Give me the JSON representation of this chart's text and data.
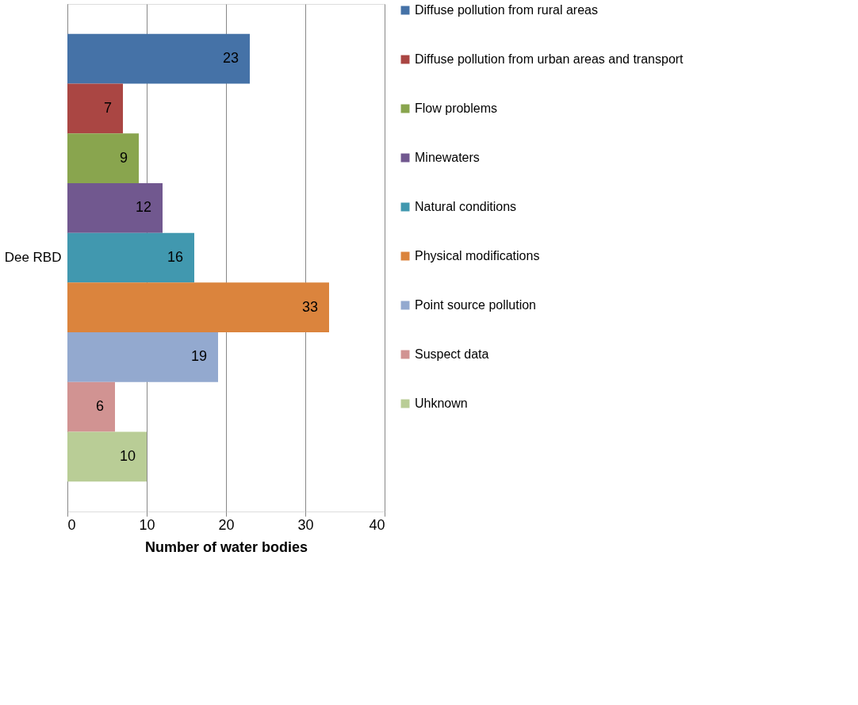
{
  "chart_data": {
    "type": "bar",
    "orientation": "horizontal",
    "categories": [
      "Dee RBD"
    ],
    "series": [
      {
        "name": "Diffuse pollution from rural areas",
        "color": "#4572a7",
        "values": [
          23
        ]
      },
      {
        "name": "Diffuse pollution from urban areas and transport",
        "color": "#aa4643",
        "values": [
          7
        ]
      },
      {
        "name": "Flow problems",
        "color": "#89a54e",
        "values": [
          9
        ]
      },
      {
        "name": "Minewaters",
        "color": "#71588f",
        "values": [
          12
        ]
      },
      {
        "name": "Natural conditions",
        "color": "#4198af",
        "values": [
          16
        ]
      },
      {
        "name": "Physical modifications",
        "color": "#db843d",
        "values": [
          33
        ]
      },
      {
        "name": "Point source pollution",
        "color": "#93a9cf",
        "values": [
          19
        ]
      },
      {
        "name": "Suspect data",
        "color": "#d19392",
        "values": [
          6
        ]
      },
      {
        "name": "Uhknown",
        "color": "#b9cd96",
        "values": [
          10
        ]
      }
    ],
    "xlabel": "Number of water bodies",
    "xlim": [
      0,
      40
    ],
    "xticks": [
      0,
      10,
      20,
      30,
      40
    ],
    "grid": "x",
    "legend": "right",
    "data_labels": true
  }
}
